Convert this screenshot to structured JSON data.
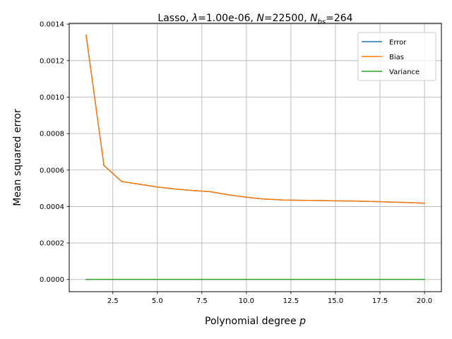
{
  "chart_data": {
    "type": "line",
    "title": {
      "prefix": "Lasso, ",
      "lambda_symbol": "λ",
      "lambda_value": "=1.00e-06, ",
      "n_symbol": "N",
      "n_value": "=22500, ",
      "nbs_symbol": "N",
      "nbs_subscript": "bs",
      "nbs_value": "=264"
    },
    "xlabel": {
      "text": "Polynomial degree ",
      "symbol": "p"
    },
    "ylabel": "Mean squared error",
    "xlim": [
      0.05,
      20.95
    ],
    "ylim": [
      -6.69e-05,
      0.0014045
    ],
    "x_ticks": [
      2.5,
      5.0,
      7.5,
      10.0,
      12.5,
      15.0,
      17.5,
      20.0
    ],
    "x_tick_labels": [
      "2.5",
      "5.0",
      "7.5",
      "10.0",
      "12.5",
      "15.0",
      "17.5",
      "20.0"
    ],
    "y_ticks": [
      0,
      0.0002,
      0.0004,
      0.0006,
      0.0008,
      0.001,
      0.0012,
      0.0014
    ],
    "y_tick_labels": [
      "0.0000",
      "0.0002",
      "0.0004",
      "0.0006",
      "0.0008",
      "0.0010",
      "0.0012",
      "0.0014"
    ],
    "grid": true,
    "legend_position": "top-right",
    "x": [
      1,
      2,
      3,
      4,
      5,
      6,
      7,
      8,
      9,
      10,
      11,
      12,
      13,
      14,
      15,
      16,
      17,
      18,
      19,
      20
    ],
    "series": [
      {
        "name": "Error",
        "color": "#1f77b4",
        "values": [
          0.001339,
          0.000625,
          0.000537,
          0.000522,
          0.000507,
          0.000496,
          0.000488,
          0.000481,
          0.000464,
          0.000451,
          0.000441,
          0.000436,
          0.000434,
          0.000433,
          0.000431,
          0.00043,
          0.000428,
          0.000425,
          0.000422,
          0.000418
        ]
      },
      {
        "name": "Bias",
        "color": "#ff7f0e",
        "values": [
          0.001339,
          0.000625,
          0.000537,
          0.000522,
          0.000507,
          0.000496,
          0.000488,
          0.000481,
          0.000464,
          0.000451,
          0.000441,
          0.000436,
          0.000434,
          0.000433,
          0.000431,
          0.00043,
          0.000428,
          0.000425,
          0.000422,
          0.000418
        ]
      },
      {
        "name": "Variance",
        "color": "#2ca02c",
        "values": [
          3e-07,
          3e-07,
          3e-07,
          3e-07,
          3e-07,
          3e-07,
          3e-07,
          3e-07,
          3e-07,
          3e-07,
          3e-07,
          3e-07,
          3e-07,
          3e-07,
          3e-07,
          3e-07,
          3e-07,
          3e-07,
          3e-07,
          3e-07
        ]
      }
    ]
  }
}
